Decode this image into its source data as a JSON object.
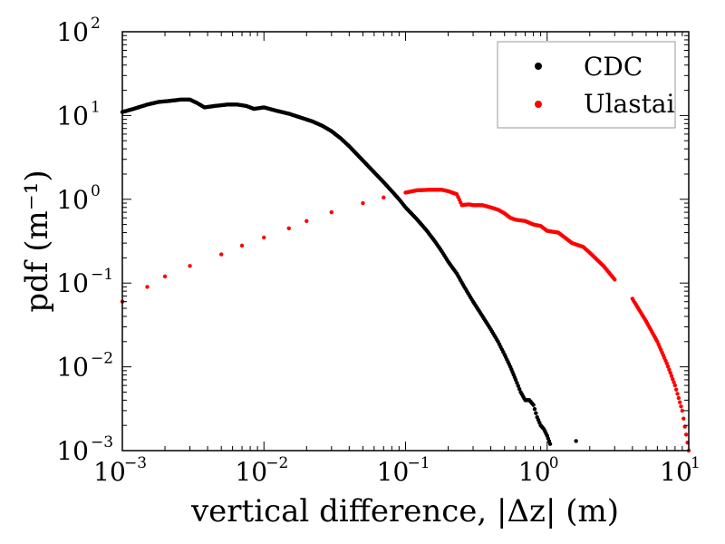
{
  "chart_data": {
    "type": "scatter",
    "title": "",
    "xlabel": "vertical difference, |Δz| (m)",
    "ylabel": "pdf (m⁻¹)",
    "xscale": "log",
    "yscale": "log",
    "xlim": [
      0.001,
      10
    ],
    "ylim": [
      0.001,
      100
    ],
    "x_ticks": [
      {
        "base": "10",
        "exp": "−3"
      },
      {
        "base": "10",
        "exp": "−2"
      },
      {
        "base": "10",
        "exp": "−1"
      },
      {
        "base": "10",
        "exp": "0"
      },
      {
        "base": "10",
        "exp": "1"
      }
    ],
    "y_ticks": [
      {
        "base": "10",
        "exp": "−3"
      },
      {
        "base": "10",
        "exp": "−2"
      },
      {
        "base": "10",
        "exp": "−1"
      },
      {
        "base": "10",
        "exp": "0"
      },
      {
        "base": "10",
        "exp": "1"
      },
      {
        "base": "10",
        "exp": "2"
      }
    ],
    "legend_position": "top-right",
    "series": [
      {
        "name": "CDC",
        "color": "#000000",
        "x": [
          0.001,
          0.0012,
          0.0015,
          0.0018,
          0.0022,
          0.0026,
          0.003,
          0.0034,
          0.0038,
          0.0045,
          0.0055,
          0.0065,
          0.0075,
          0.0085,
          0.01,
          0.012,
          0.015,
          0.018,
          0.022,
          0.026,
          0.03,
          0.035,
          0.04,
          0.05,
          0.06,
          0.07,
          0.08,
          0.09,
          0.1,
          0.12,
          0.14,
          0.16,
          0.18,
          0.2,
          0.23,
          0.26,
          0.3,
          0.35,
          0.4,
          0.45,
          0.5,
          0.55,
          0.6,
          0.65,
          0.7,
          0.75,
          0.8,
          0.85,
          0.9,
          0.95,
          1.0,
          1.05,
          1.6
        ],
        "y": [
          11,
          12,
          13.5,
          14.5,
          15,
          15.5,
          15.5,
          14,
          12.5,
          13,
          13.5,
          13.5,
          13,
          12,
          12.5,
          11.5,
          10.5,
          9.5,
          8.5,
          7.5,
          6.5,
          5.3,
          4.3,
          2.9,
          2.1,
          1.6,
          1.25,
          1.0,
          0.8,
          0.58,
          0.43,
          0.32,
          0.24,
          0.18,
          0.13,
          0.09,
          0.06,
          0.04,
          0.028,
          0.02,
          0.014,
          0.01,
          0.007,
          0.005,
          0.004,
          0.004,
          0.0035,
          0.0025,
          0.002,
          0.0018,
          0.0015,
          0.0012,
          0.0013
        ]
      },
      {
        "name": "Ulastai",
        "color": "#ff0000",
        "x": [
          0.001,
          0.0015,
          0.002,
          0.003,
          0.005,
          0.007,
          0.01,
          0.015,
          0.02,
          0.03,
          0.05,
          0.07,
          0.1,
          0.12,
          0.15,
          0.18,
          0.2,
          0.23,
          0.25,
          0.28,
          0.3,
          0.35,
          0.4,
          0.45,
          0.5,
          0.55,
          0.6,
          0.7,
          0.8,
          0.9,
          1.0,
          1.2,
          1.5,
          1.8,
          2.0,
          2.5,
          3.0,
          4.0,
          5.0,
          6.0,
          7.0,
          8.0,
          9.0,
          10.0
        ],
        "y": [
          0.06,
          0.09,
          0.12,
          0.16,
          0.22,
          0.28,
          0.35,
          0.45,
          0.55,
          0.7,
          0.9,
          1.05,
          1.2,
          1.28,
          1.3,
          1.3,
          1.25,
          1.15,
          0.85,
          0.87,
          0.85,
          0.85,
          0.8,
          0.75,
          0.68,
          0.6,
          0.57,
          0.55,
          0.5,
          0.48,
          0.42,
          0.4,
          0.3,
          0.27,
          0.23,
          0.16,
          0.11,
          0.065,
          0.035,
          0.02,
          0.011,
          0.006,
          0.003,
          0.001
        ]
      }
    ]
  }
}
